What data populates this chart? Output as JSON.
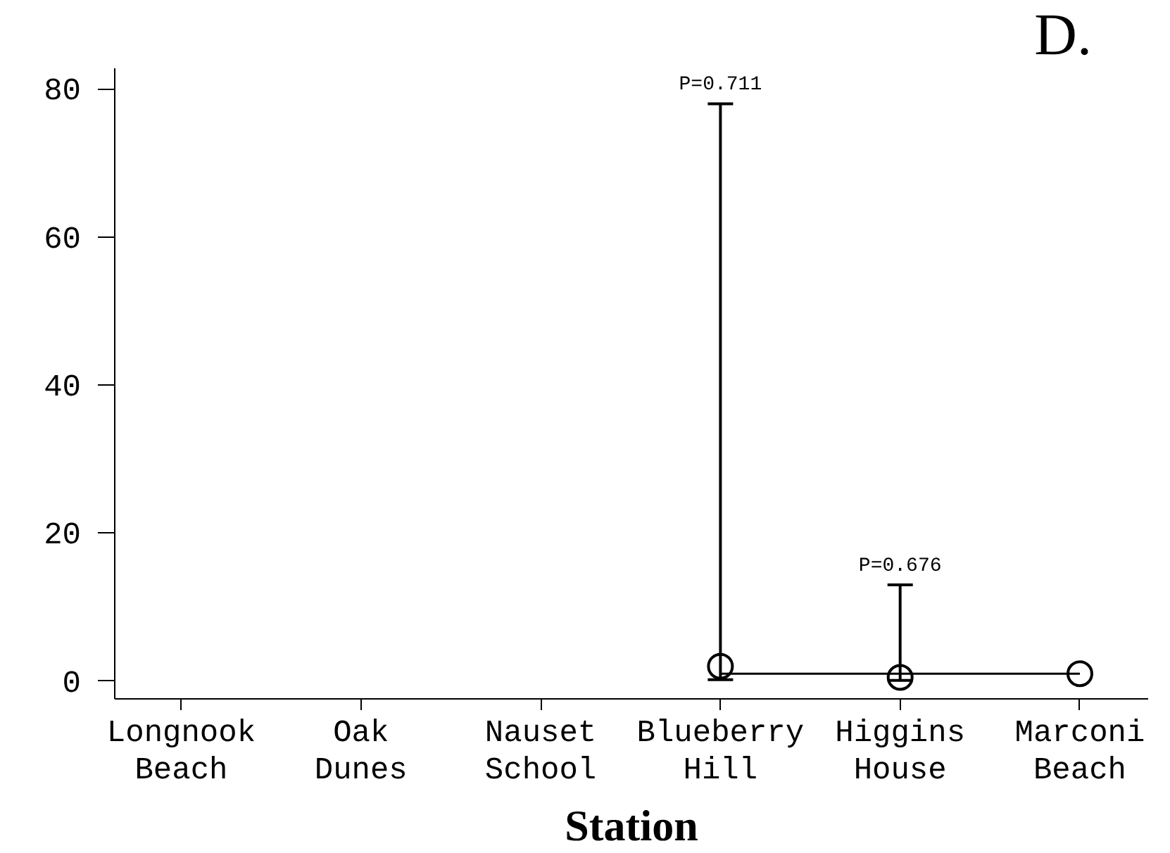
{
  "chart_data": {
    "type": "scatter",
    "title": "D.",
    "xlabel": "Station",
    "categories": [
      "Longnook Beach",
      "Oak Dunes",
      "Nauset School",
      "Blueberry Hill",
      "Higgins House",
      "Marconi Beach"
    ],
    "series": [
      {
        "type": "line",
        "x": [
          "Blueberry Hill",
          "Marconi Beach"
        ],
        "values": [
          1,
          1
        ],
        "color": "#000000",
        "marker": "none"
      },
      {
        "color": "#000000",
        "values": [
          null,
          null,
          null,
          2,
          0.5,
          1
        ],
        "errors": [
          null,
          null,
          null,
          [
            0.2,
            78
          ],
          [
            0.1,
            13
          ],
          null
        ]
      }
    ],
    "marker": "circle",
    "ylim": [
      -2.4,
      82.8
    ],
    "yticks": [
      0,
      20,
      40,
      60,
      80
    ],
    "annotations": [
      {
        "text": "P=0.711",
        "x": "Blueberry Hill",
        "y": 78
      },
      {
        "text": "P=0.676",
        "x": "Higgins House",
        "y": 13
      }
    ]
  }
}
